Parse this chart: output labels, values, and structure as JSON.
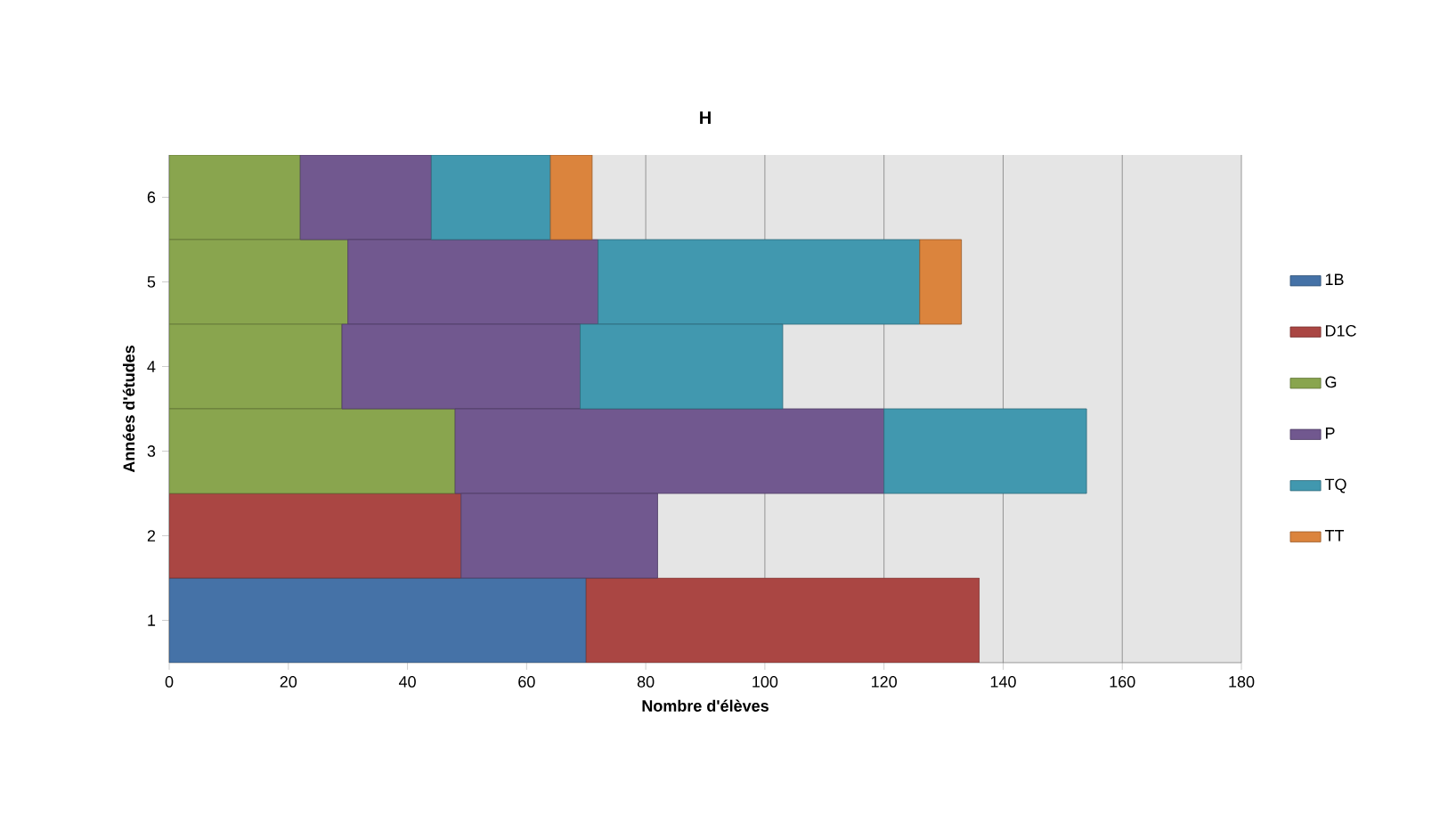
{
  "chart_data": {
    "type": "bar",
    "orientation": "horizontal",
    "stacked": true,
    "title": "H",
    "xlabel": "Nombre d'élèves",
    "ylabel": "Années d'études",
    "categories": [
      "6",
      "5",
      "4",
      "3",
      "2",
      "1"
    ],
    "series": [
      {
        "name": "1B",
        "color": "#4572a7",
        "values": [
          null,
          null,
          null,
          null,
          null,
          70
        ]
      },
      {
        "name": "D1C",
        "color": "#aa4643",
        "values": [
          null,
          null,
          null,
          null,
          49,
          66
        ]
      },
      {
        "name": "G",
        "color": "#89a54e",
        "values": [
          22,
          30,
          29,
          48,
          null,
          null
        ]
      },
      {
        "name": "P",
        "color": "#71588f",
        "values": [
          22,
          42,
          40,
          72,
          33,
          null
        ]
      },
      {
        "name": "TQ",
        "color": "#4198af",
        "values": [
          20,
          54,
          34,
          34,
          null,
          null
        ]
      },
      {
        "name": "TT",
        "color": "#db843d",
        "values": [
          7,
          7,
          null,
          null,
          null,
          null
        ]
      }
    ],
    "xlim": [
      0,
      180
    ],
    "xticks": [
      0,
      20,
      40,
      60,
      80,
      100,
      120,
      140,
      160,
      180
    ],
    "grid": "x",
    "legend": "right"
  }
}
